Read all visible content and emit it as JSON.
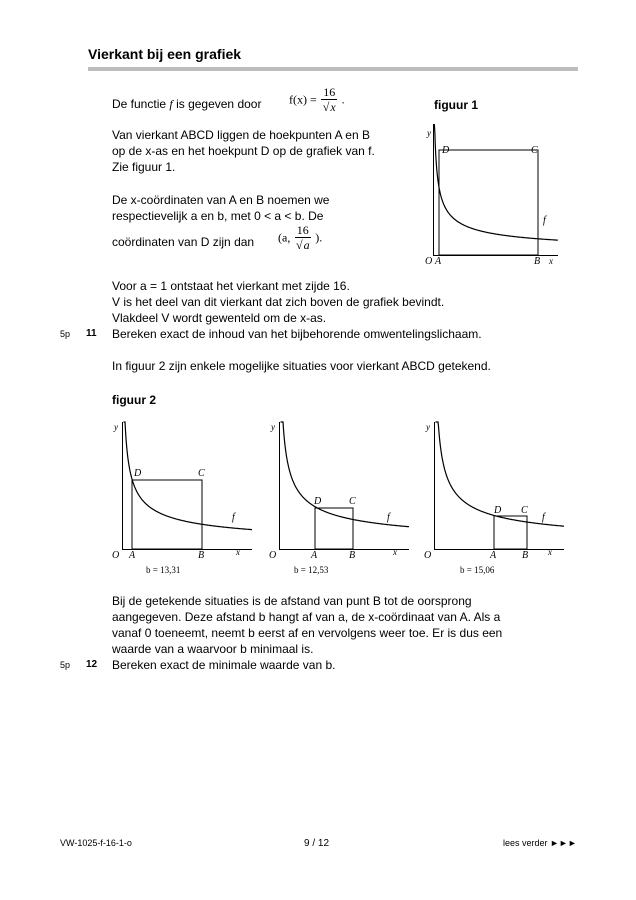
{
  "header": {
    "title": "Vierkant bij een grafiek"
  },
  "intro": {
    "line1_pre": "De functie",
    "line1_f": "f",
    "line1_mid": "is gegeven door",
    "formula_lhs": "f(x) =",
    "formula_num": "16",
    "formula_den": "x",
    "formula_end": "."
  },
  "para1": [
    "Van vierkant ABCD liggen de hoekpunten A en B",
    "op de x-as en het hoekpunt D op de grafiek van f.",
    "Zie figuur 1."
  ],
  "para2": {
    "line1": "De x-coördinaten van A en B noemen we",
    "line2": "respectievelijk a en b, met 0 < a < b. De",
    "line3_pre": "coördinaten van D zijn dan",
    "coord_open": "(a,",
    "coord_num": "16",
    "coord_den": "a",
    "coord_close": ")."
  },
  "figure1": {
    "caption": "figuur 1",
    "labels": {
      "y": "y",
      "x": "x",
      "O": "O",
      "A": "A",
      "B": "B",
      "C": "C",
      "D": "D",
      "f": "f"
    }
  },
  "para3": [
    "Voor a = 1 ontstaat het vierkant met zijde 16.",
    "V is het deel van dit vierkant dat zich boven de grafiek bevindt.",
    "Vlakdeel V wordt gewenteld om de x-as."
  ],
  "q11": {
    "score": "5p",
    "number": "11",
    "text": "Bereken exact de inhoud van het bijbehorende omwentelingslichaam."
  },
  "para4": "In figuur 2 zijn enkele mogelijke situaties voor vierkant ABCD getekend.",
  "figure2": {
    "caption": "figuur 2",
    "panels": [
      {
        "b_label": "b = 13,31"
      },
      {
        "b_label": "b = 12,53"
      },
      {
        "b_label": "b = 15,06"
      }
    ],
    "labels": {
      "y": "y",
      "x": "x",
      "O": "O",
      "A": "A",
      "B": "B",
      "C": "C",
      "D": "D",
      "f": "f"
    }
  },
  "para5": [
    "Bij de getekende situaties is de afstand van punt B tot de oorsprong",
    "aangegeven. Deze afstand b hangt af van a, de x-coördinaat van A. Als a",
    "vanaf 0 toeneemt, neemt b eerst af en vervolgens weer toe. Er is dus een",
    "waarde van a waarvoor b minimaal is."
  ],
  "q12": {
    "score": "5p",
    "number": "12",
    "text": "Bereken exact de minimale waarde van b."
  },
  "footer": {
    "code": "VW-1025-f-16-1-o",
    "page": "9 / 12",
    "next": "lees verder ►►►"
  }
}
